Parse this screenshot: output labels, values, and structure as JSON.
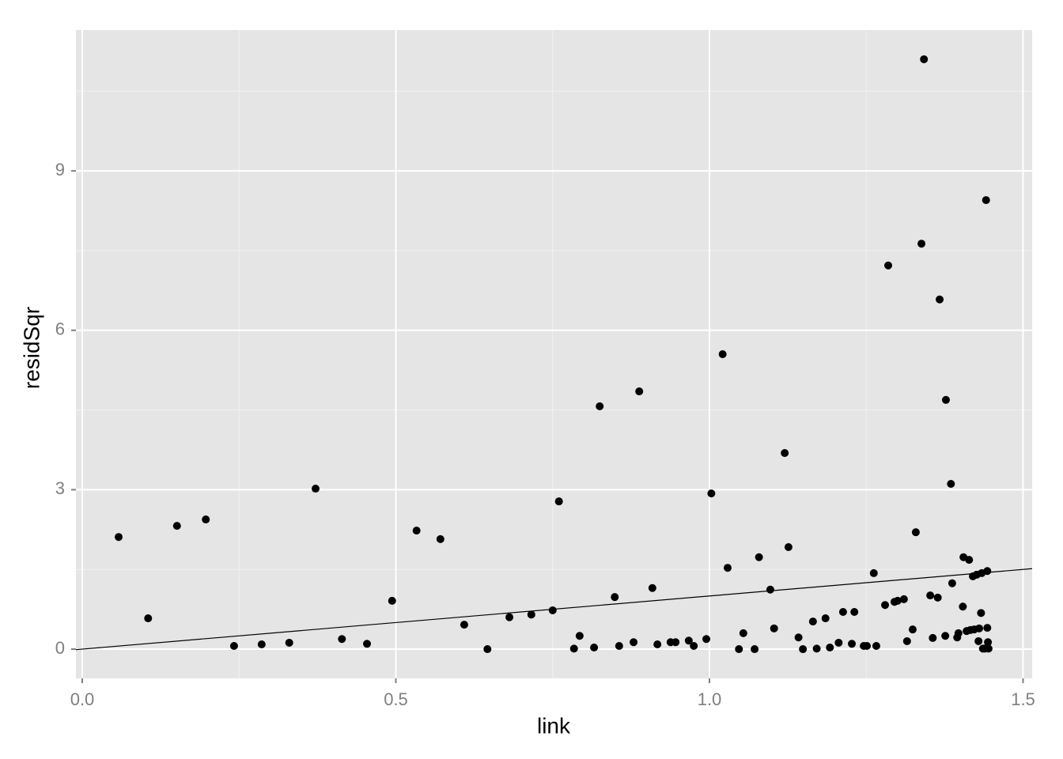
{
  "chart_data": {
    "type": "scatter",
    "x_label": "link",
    "y_label": "residSqr",
    "color": "#000000",
    "panel_color": "#e5e5e5",
    "grid": true,
    "xlim": [
      -0.0101,
      1.5145
    ],
    "ylim": [
      -0.55,
      11.65
    ],
    "xticks": [
      {
        "value": 0,
        "label": "0.0"
      },
      0.5,
      {
        "value": 1,
        "label": "1.0"
      },
      1.5
    ],
    "yticks": [
      0,
      3,
      6,
      9
    ],
    "minor_xticks": [
      0.25,
      0.75,
      1.25
    ],
    "minor_yticks": [
      1.5,
      4.5,
      7.5,
      10.5
    ],
    "abline": {
      "intercept": 0,
      "slope": 1
    },
    "x": [
      0.058,
      0.105,
      0.151,
      0.197,
      0.242,
      0.286,
      0.33,
      0.372,
      0.414,
      0.454,
      0.494,
      0.533,
      0.571,
      0.609,
      0.646,
      0.681,
      0.716,
      0.75,
      0.76,
      0.784,
      0.793,
      0.816,
      0.825,
      0.849,
      0.856,
      0.879,
      0.888,
      0.909,
      0.917,
      0.938,
      0.946,
      0.967,
      0.975,
      0.995,
      1.003,
      1.021,
      1.029,
      1.047,
      1.054,
      1.072,
      1.079,
      1.097,
      1.103,
      1.12,
      1.126,
      1.142,
      1.149,
      1.165,
      1.171,
      1.185,
      1.192,
      1.206,
      1.213,
      1.227,
      1.231,
      1.246,
      1.251,
      1.262,
      1.266,
      1.28,
      1.285,
      1.295,
      1.3,
      1.31,
      1.315,
      1.324,
      1.329,
      1.338,
      1.342,
      1.352,
      1.356,
      1.364,
      1.367,
      1.376,
      1.377,
      1.385,
      1.387,
      1.395,
      1.397,
      1.404,
      1.405,
      1.41,
      1.414,
      1.416,
      1.42,
      1.422,
      1.426,
      1.429,
      1.43,
      1.433,
      1.434,
      1.436,
      1.439,
      1.441,
      1.443,
      1.443,
      1.444,
      1.445
    ],
    "values": [
      2.11,
      0.58,
      2.32,
      2.44,
      0.06,
      0.09,
      0.12,
      3.02,
      0.19,
      0.1,
      0.91,
      2.23,
      2.07,
      0.46,
      0.0,
      0.6,
      0.65,
      0.73,
      2.78,
      0.01,
      0.25,
      0.03,
      4.57,
      0.98,
      0.06,
      0.13,
      4.85,
      1.15,
      0.09,
      0.13,
      0.13,
      0.16,
      0.06,
      0.19,
      2.93,
      5.55,
      1.53,
      0.0,
      0.3,
      0.0,
      1.73,
      1.12,
      0.39,
      3.69,
      1.92,
      0.22,
      0.0,
      0.52,
      0.01,
      0.58,
      0.03,
      0.12,
      0.7,
      0.1,
      0.7,
      0.06,
      0.06,
      1.43,
      0.06,
      0.83,
      7.22,
      0.89,
      0.91,
      0.94,
      0.15,
      0.37,
      2.2,
      7.63,
      11.1,
      1.01,
      0.21,
      0.97,
      6.58,
      0.25,
      4.69,
      3.11,
      1.24,
      0.22,
      0.3,
      0.8,
      1.73,
      0.34,
      1.68,
      0.36,
      1.37,
      0.37,
      1.4,
      0.15,
      0.39,
      0.68,
      1.43,
      0.01,
      0.01,
      8.45,
      1.47,
      0.4,
      0.13,
      0.01
    ]
  }
}
